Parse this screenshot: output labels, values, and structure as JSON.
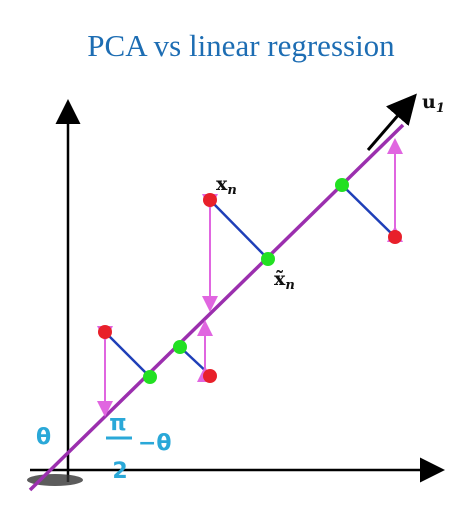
{
  "title": "PCA vs linear regression",
  "labels": {
    "u1": {
      "base": "u",
      "sub": "1"
    },
    "xn": {
      "base": "x",
      "sub": "n"
    },
    "xtilde": {
      "base": "x̃",
      "sub": "n"
    },
    "theta": "θ",
    "angle": {
      "numerator": "π",
      "denominator": "2",
      "rest": "−θ"
    }
  }
}
